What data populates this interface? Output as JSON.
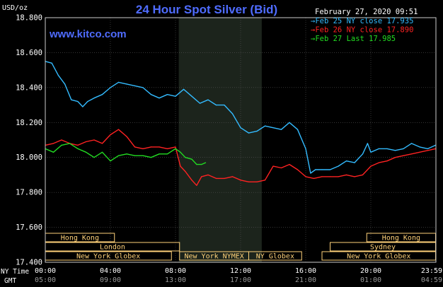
{
  "colors": {
    "background": "#000000",
    "plot_border": "#cccccc",
    "grid": "#555555",
    "title": "#4f6cff",
    "site": "#4f6cff",
    "text": "#ffffff",
    "session_box": "#ffd27a",
    "nymex_shade": "#1c241c"
  },
  "header": {
    "title": "24 Hour Spot Silver (Bid)",
    "site": "www.kitco.com",
    "unit": "USD/oz",
    "timestamp": "February 27, 2020 09:51"
  },
  "axis_labels": {
    "ny_time": "NY Time",
    "gmt": "GMT"
  },
  "chart_data": {
    "type": "line",
    "ylim": [
      17.4,
      18.8
    ],
    "y_ticks": [
      "18.800",
      "18.600",
      "18.400",
      "18.200",
      "18.000",
      "17.800",
      "17.600",
      "17.400"
    ],
    "y_tick_values": [
      18.8,
      18.6,
      18.4,
      18.2,
      18.0,
      17.8,
      17.6,
      17.4
    ],
    "xlim": [
      0,
      24
    ],
    "x_tick_hours": [
      0,
      4,
      8,
      12,
      16,
      20,
      24
    ],
    "ny_time_ticks": [
      "00:00",
      "04:00",
      "08:00",
      "12:00",
      "16:00",
      "20:00",
      "23:59"
    ],
    "gmt_ticks": [
      "05:00",
      "09:00",
      "13:00",
      "17:00",
      "21:00",
      "01:00",
      "04:59"
    ],
    "legend_position": "top-right",
    "nymex_shade_hours": [
      8.2,
      13.3
    ],
    "series": [
      {
        "name": "Feb 25 NY close 17.935",
        "color": "#33bbff",
        "x": [
          0,
          0.4,
          0.8,
          1.2,
          1.6,
          2.0,
          2.3,
          2.6,
          3.0,
          3.5,
          4.0,
          4.5,
          5.0,
          5.5,
          6.0,
          6.5,
          7.0,
          7.5,
          8.0,
          8.5,
          9.0,
          9.5,
          10.0,
          10.5,
          11.0,
          11.5,
          12.0,
          12.5,
          13.0,
          13.5,
          14.0,
          14.5,
          15.0,
          15.5,
          16.0,
          16.3,
          16.6,
          17.0,
          17.5,
          18.0,
          18.5,
          19.0,
          19.5,
          19.8,
          20.0,
          20.5,
          21.0,
          21.5,
          22.0,
          22.5,
          23.0,
          23.5,
          23.98
        ],
        "y": [
          18.55,
          18.54,
          18.47,
          18.42,
          18.33,
          18.32,
          18.29,
          18.32,
          18.34,
          18.36,
          18.4,
          18.43,
          18.42,
          18.41,
          18.4,
          18.36,
          18.34,
          18.36,
          18.35,
          18.39,
          18.35,
          18.31,
          18.33,
          18.3,
          18.3,
          18.25,
          18.17,
          18.14,
          18.15,
          18.18,
          18.17,
          18.16,
          18.2,
          18.16,
          18.05,
          17.91,
          17.93,
          17.93,
          17.93,
          17.95,
          17.98,
          17.97,
          18.02,
          18.08,
          18.03,
          18.05,
          18.05,
          18.04,
          18.05,
          18.08,
          18.06,
          18.05,
          18.07
        ]
      },
      {
        "name": "Feb 26 NY close 17.890",
        "color": "#ff2222",
        "x": [
          0,
          0.5,
          1.0,
          1.5,
          2.0,
          2.5,
          3.0,
          3.5,
          4.0,
          4.5,
          5.0,
          5.5,
          6.0,
          6.5,
          7.0,
          7.5,
          8.0,
          8.3,
          8.6,
          9.0,
          9.3,
          9.6,
          10.0,
          10.5,
          11.0,
          11.5,
          12.0,
          12.5,
          13.0,
          13.5,
          14.0,
          14.5,
          15.0,
          15.5,
          16.0,
          16.5,
          17.0,
          17.5,
          18.0,
          18.5,
          19.0,
          19.5,
          20.0,
          20.5,
          21.0,
          21.5,
          22.0,
          22.5,
          23.0,
          23.5,
          23.98
        ],
        "y": [
          18.07,
          18.08,
          18.1,
          18.08,
          18.07,
          18.09,
          18.1,
          18.08,
          18.13,
          18.16,
          18.12,
          18.06,
          18.05,
          18.06,
          18.06,
          18.05,
          18.06,
          17.95,
          17.92,
          17.87,
          17.84,
          17.89,
          17.9,
          17.88,
          17.88,
          17.89,
          17.87,
          17.86,
          17.86,
          17.87,
          17.95,
          17.94,
          17.96,
          17.93,
          17.89,
          17.88,
          17.89,
          17.89,
          17.89,
          17.9,
          17.89,
          17.9,
          17.95,
          17.97,
          17.98,
          18.0,
          18.01,
          18.02,
          18.03,
          18.04,
          18.05
        ]
      },
      {
        "name": "Feb 27 Last 17.985",
        "color": "#22dd22",
        "x": [
          0,
          0.5,
          1.0,
          1.5,
          2.0,
          2.5,
          3.0,
          3.5,
          4.0,
          4.5,
          5.0,
          5.5,
          6.0,
          6.5,
          7.0,
          7.5,
          8.0,
          8.3,
          8.6,
          9.0,
          9.3,
          9.6,
          9.85
        ],
        "y": [
          18.05,
          18.03,
          18.07,
          18.08,
          18.05,
          18.03,
          18.0,
          18.03,
          17.98,
          18.01,
          18.02,
          18.01,
          18.01,
          18.0,
          18.02,
          18.02,
          18.05,
          18.03,
          18.0,
          17.99,
          17.96,
          17.96,
          17.97
        ]
      }
    ]
  },
  "sessions": [
    {
      "label": "Hong Kong",
      "start": 0,
      "end": 4.25,
      "row": 1
    },
    {
      "label": "Hong Kong",
      "start": 19.75,
      "end": 23.98,
      "row": 1
    },
    {
      "label": "London",
      "start": 0,
      "end": 8.25,
      "row": 2
    },
    {
      "label": "Sydney",
      "start": 17.5,
      "end": 23.98,
      "row": 2
    },
    {
      "label": "New York Globex",
      "start": 0,
      "end": 7.75,
      "row": 3
    },
    {
      "label": "New York NYMEX",
      "start": 8.25,
      "end": 12.5,
      "row": 3
    },
    {
      "label": "NY Globex",
      "start": 12.5,
      "end": 15.75,
      "row": 3
    },
    {
      "label": "New York Globex",
      "start": 17.0,
      "end": 23.98,
      "row": 3
    }
  ]
}
